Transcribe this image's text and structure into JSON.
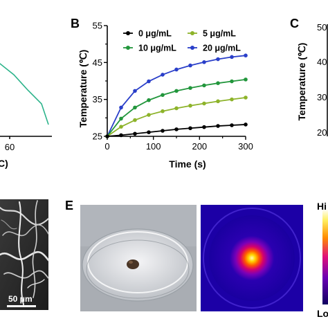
{
  "panels": {
    "b_letter": "B",
    "c_letter": "C",
    "e_letter": "E"
  },
  "panel_a_partial": {
    "x_tick": "60",
    "x_title_fragment": "C)",
    "line_color": "#2bb38a",
    "points": [
      [
        -18,
        92
      ],
      [
        0,
        92
      ],
      [
        20,
        108
      ],
      [
        40,
        130
      ],
      [
        60,
        150
      ],
      [
        70,
        180
      ]
    ]
  },
  "chart_data": [
    {
      "type": "line",
      "panel": "B",
      "xlabel": "Time (s)",
      "ylabel": "Temperature (℃)",
      "x": [
        0,
        30,
        60,
        90,
        120,
        150,
        180,
        210,
        240,
        270,
        300
      ],
      "xlim": [
        0,
        300
      ],
      "ylim": [
        25,
        55
      ],
      "x_ticks": [
        "0",
        "100",
        "200",
        "300"
      ],
      "y_ticks": [
        "25",
        "35",
        "45",
        "55"
      ],
      "legend_position": "top-left, two columns",
      "series": [
        {
          "name": "0 μg/mL",
          "color": "#000000",
          "values": [
            25.0,
            25.3,
            25.7,
            26.1,
            26.5,
            26.9,
            27.2,
            27.5,
            27.8,
            28.0,
            28.2
          ]
        },
        {
          "name": "5 μg/mL",
          "color": "#8db32a",
          "values": [
            25.0,
            27.6,
            29.4,
            30.8,
            31.8,
            32.6,
            33.3,
            33.9,
            34.5,
            35.0,
            35.5
          ]
        },
        {
          "name": "10 μg/mL",
          "color": "#22963c",
          "values": [
            25.0,
            29.8,
            32.8,
            34.8,
            36.2,
            37.3,
            38.1,
            38.8,
            39.4,
            39.9,
            40.4
          ]
        },
        {
          "name": "20 μg/mL",
          "color": "#2a3fc9",
          "values": [
            25.0,
            32.8,
            37.3,
            39.9,
            41.7,
            43.1,
            44.2,
            45.1,
            45.9,
            46.5,
            46.9
          ]
        }
      ]
    }
  ],
  "panel_c_partial": {
    "ylabel": "Temperature (℃)",
    "y_ticks": [
      "50",
      "40",
      "30",
      "20"
    ]
  },
  "panel_d_partial": {
    "scale_bar_label": "50 μm"
  },
  "panel_e": {
    "colorbar_high": "Hi",
    "colorbar_low": "Lo"
  }
}
